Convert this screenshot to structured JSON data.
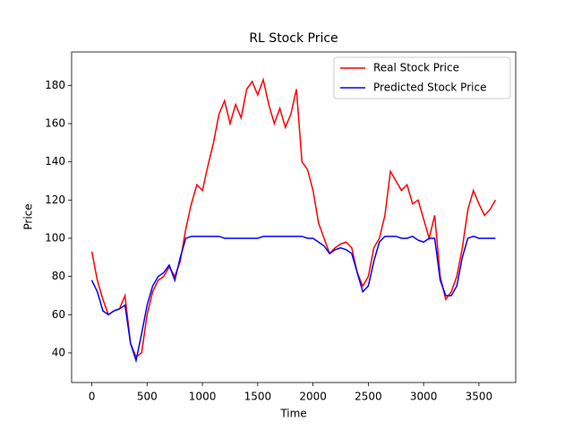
{
  "chart_data": {
    "type": "line",
    "title": "RL Stock Price",
    "x_label": "Time",
    "y_label": "Price",
    "x": [
      0,
      50,
      100,
      150,
      200,
      250,
      300,
      350,
      400,
      450,
      500,
      550,
      600,
      650,
      700,
      750,
      800,
      850,
      900,
      950,
      1000,
      1050,
      1100,
      1150,
      1200,
      1250,
      1300,
      1350,
      1400,
      1450,
      1500,
      1550,
      1600,
      1650,
      1700,
      1750,
      1800,
      1850,
      1900,
      1950,
      2000,
      2050,
      2100,
      2150,
      2200,
      2250,
      2300,
      2350,
      2400,
      2450,
      2500,
      2550,
      2600,
      2650,
      2700,
      2750,
      2800,
      2850,
      2900,
      2950,
      3000,
      3050,
      3100,
      3150,
      3200,
      3250,
      3300,
      3350,
      3400,
      3450,
      3500,
      3550,
      3600,
      3650
    ],
    "series": [
      {
        "name": "Real Stock Price",
        "color": "#ff0000",
        "values": [
          93,
          78,
          68,
          60,
          62,
          63,
          70,
          45,
          38,
          40,
          60,
          72,
          78,
          80,
          85,
          80,
          88,
          105,
          118,
          128,
          125,
          138,
          150,
          165,
          172,
          160,
          170,
          163,
          178,
          182,
          175,
          183,
          170,
          160,
          168,
          158,
          165,
          178,
          140,
          136,
          125,
          108,
          100,
          92,
          95,
          97,
          98,
          95,
          82,
          75,
          80,
          95,
          100,
          112,
          135,
          130,
          125,
          128,
          118,
          120,
          110,
          100,
          112,
          80,
          68,
          72,
          80,
          95,
          115,
          125,
          118,
          112,
          115,
          120
        ]
      },
      {
        "name": "Predicted Stock Price",
        "color": "#0000ff",
        "values": [
          78,
          72,
          62,
          60,
          62,
          63,
          65,
          45,
          36,
          50,
          65,
          75,
          80,
          82,
          86,
          78,
          90,
          100,
          101,
          101,
          101,
          101,
          101,
          101,
          100,
          100,
          100,
          100,
          100,
          100,
          100,
          101,
          101,
          101,
          101,
          101,
          101,
          101,
          101,
          100,
          100,
          98,
          96,
          92,
          94,
          95,
          94,
          92,
          82,
          72,
          75,
          88,
          98,
          101,
          101,
          101,
          100,
          100,
          101,
          99,
          98,
          100,
          100,
          78,
          70,
          70,
          75,
          90,
          100,
          101,
          100,
          100,
          100,
          100
        ]
      }
    ],
    "xlim": [
      -182.5,
      3832.5
    ],
    "ylim": [
      24.5,
      197.5
    ],
    "xticks": [
      0,
      500,
      1000,
      1500,
      2000,
      2500,
      3000,
      3500
    ],
    "yticks": [
      40,
      60,
      80,
      100,
      120,
      140,
      160,
      180
    ],
    "legend": "upper right"
  }
}
